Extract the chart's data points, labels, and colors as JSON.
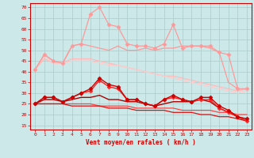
{
  "background_color": "#cce8e8",
  "grid_color": "#aacccc",
  "xlabel": "Vent moyen/en rafales ( km/h )",
  "ylabel_ticks": [
    15,
    20,
    25,
    30,
    35,
    40,
    45,
    50,
    55,
    60,
    65,
    70
  ],
  "xticks": [
    0,
    1,
    2,
    3,
    4,
    5,
    6,
    7,
    8,
    9,
    10,
    11,
    12,
    13,
    14,
    15,
    16,
    17,
    18,
    19,
    20,
    21,
    22,
    23
  ],
  "ylim": [
    13,
    72
  ],
  "xlim": [
    -0.5,
    23.5
  ],
  "series": [
    {
      "color": "#ffbbbb",
      "linewidth": 0.9,
      "marker": null,
      "zorder": 1,
      "data": [
        41,
        46,
        44,
        44,
        46,
        46,
        46,
        45,
        44,
        43,
        42,
        41,
        40,
        39,
        38,
        38,
        37,
        36,
        35,
        34,
        33,
        32,
        31,
        32
      ]
    },
    {
      "color": "#ff9999",
      "linewidth": 0.9,
      "marker": null,
      "zorder": 2,
      "data": [
        41,
        48,
        45,
        44,
        52,
        53,
        52,
        51,
        50,
        52,
        50,
        50,
        51,
        50,
        51,
        51,
        52,
        52,
        52,
        51,
        49,
        35,
        32,
        32
      ]
    },
    {
      "color": "#ff9999",
      "linewidth": 0.9,
      "marker": "D",
      "markersize": 2.5,
      "zorder": 3,
      "data": [
        41,
        48,
        45,
        44,
        52,
        53,
        67,
        70,
        62,
        61,
        53,
        52,
        52,
        51,
        53,
        62,
        51,
        52,
        52,
        52,
        49,
        48,
        32,
        32
      ]
    },
    {
      "color": "#ffcccc",
      "linewidth": 0.9,
      "marker": null,
      "zorder": 1,
      "data": [
        41,
        47,
        44,
        44,
        45,
        45,
        45,
        44,
        43,
        43,
        42,
        41,
        40,
        39,
        38,
        37,
        36,
        35,
        34,
        33,
        32,
        31,
        30,
        31
      ]
    },
    {
      "color": "#cc0000",
      "linewidth": 1.0,
      "marker": "D",
      "markersize": 2.5,
      "zorder": 5,
      "data": [
        25,
        28,
        28,
        26,
        28,
        30,
        32,
        37,
        34,
        33,
        27,
        27,
        25,
        24,
        27,
        29,
        27,
        26,
        28,
        28,
        24,
        22,
        19,
        18
      ]
    },
    {
      "color": "#ff2222",
      "linewidth": 1.0,
      "marker": "D",
      "markersize": 2.5,
      "zorder": 4,
      "data": [
        25,
        28,
        28,
        26,
        28,
        30,
        31,
        36,
        33,
        32,
        27,
        27,
        25,
        24,
        27,
        28,
        27,
        26,
        27,
        27,
        23,
        21,
        19,
        17
      ]
    },
    {
      "color": "#aa0000",
      "linewidth": 1.0,
      "marker": null,
      "zorder": 3,
      "data": [
        25,
        27,
        27,
        26,
        27,
        28,
        28,
        29,
        27,
        27,
        26,
        26,
        25,
        24,
        25,
        26,
        26,
        26,
        27,
        26,
        23,
        21,
        19,
        17
      ]
    },
    {
      "color": "#ff4444",
      "linewidth": 0.9,
      "marker": null,
      "zorder": 2,
      "data": [
        25,
        25,
        25,
        25,
        25,
        25,
        25,
        24,
        24,
        24,
        24,
        23,
        23,
        23,
        23,
        23,
        22,
        22,
        22,
        22,
        21,
        21,
        20,
        20
      ]
    },
    {
      "color": "#dd1111",
      "linewidth": 0.9,
      "marker": null,
      "zorder": 2,
      "data": [
        25,
        25,
        25,
        25,
        24,
        24,
        24,
        24,
        23,
        23,
        23,
        22,
        22,
        22,
        22,
        21,
        21,
        21,
        20,
        20,
        19,
        19,
        18,
        17
      ]
    }
  ]
}
